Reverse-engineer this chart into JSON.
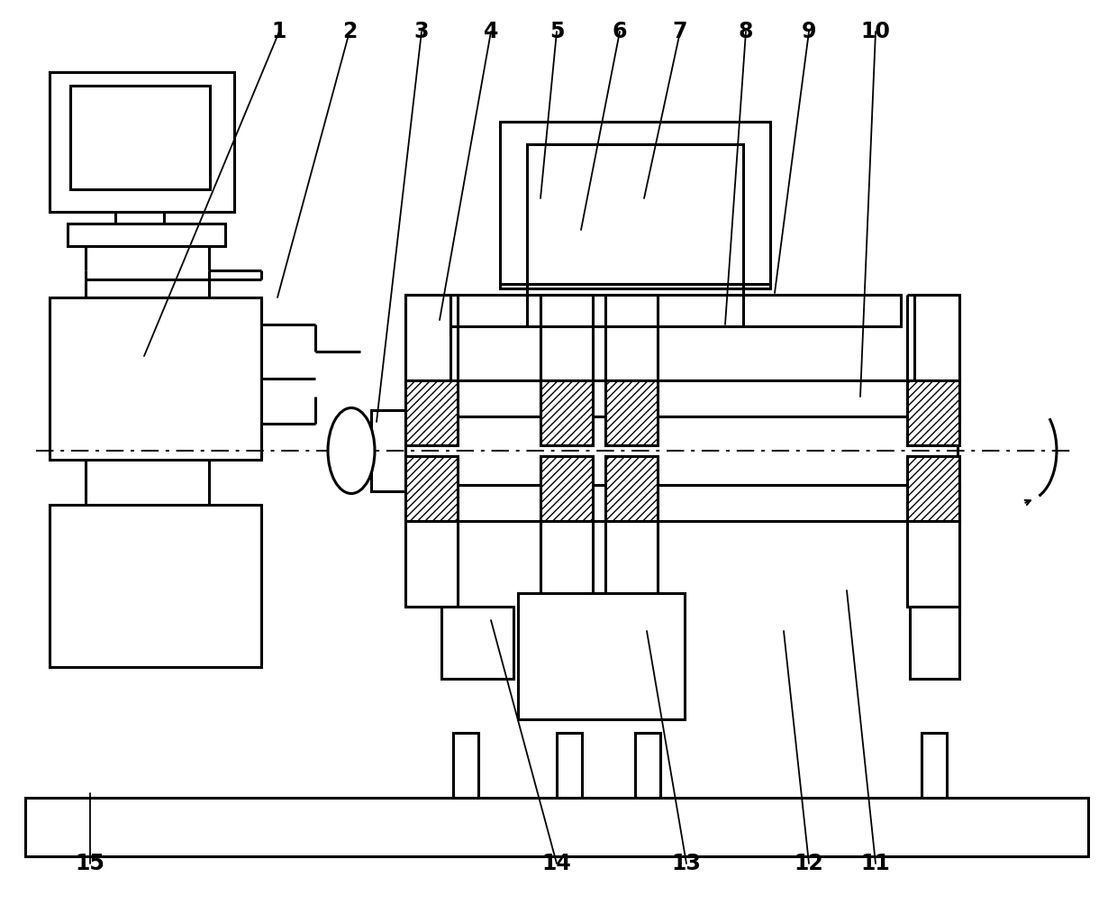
{
  "background": "#ffffff",
  "lw": 2.2,
  "lw_thin": 1.4,
  "label_fs": 17,
  "numbers": [
    "1",
    "2",
    "3",
    "4",
    "5",
    "6",
    "7",
    "8",
    "9",
    "10",
    "11",
    "12",
    "13",
    "14",
    "15"
  ],
  "num_x": [
    310,
    388,
    468,
    545,
    618,
    688,
    755,
    828,
    898,
    972,
    972,
    898,
    762,
    618,
    100
  ],
  "num_y": [
    35,
    35,
    35,
    35,
    35,
    35,
    35,
    35,
    35,
    35,
    958,
    958,
    958,
    958,
    958
  ],
  "arr_tx": [
    160,
    308,
    418,
    488,
    600,
    645,
    715,
    805,
    860,
    955,
    940,
    870,
    718,
    545,
    100
  ],
  "arr_ty": [
    395,
    330,
    468,
    355,
    220,
    255,
    220,
    360,
    325,
    440,
    655,
    700,
    700,
    688,
    880
  ]
}
